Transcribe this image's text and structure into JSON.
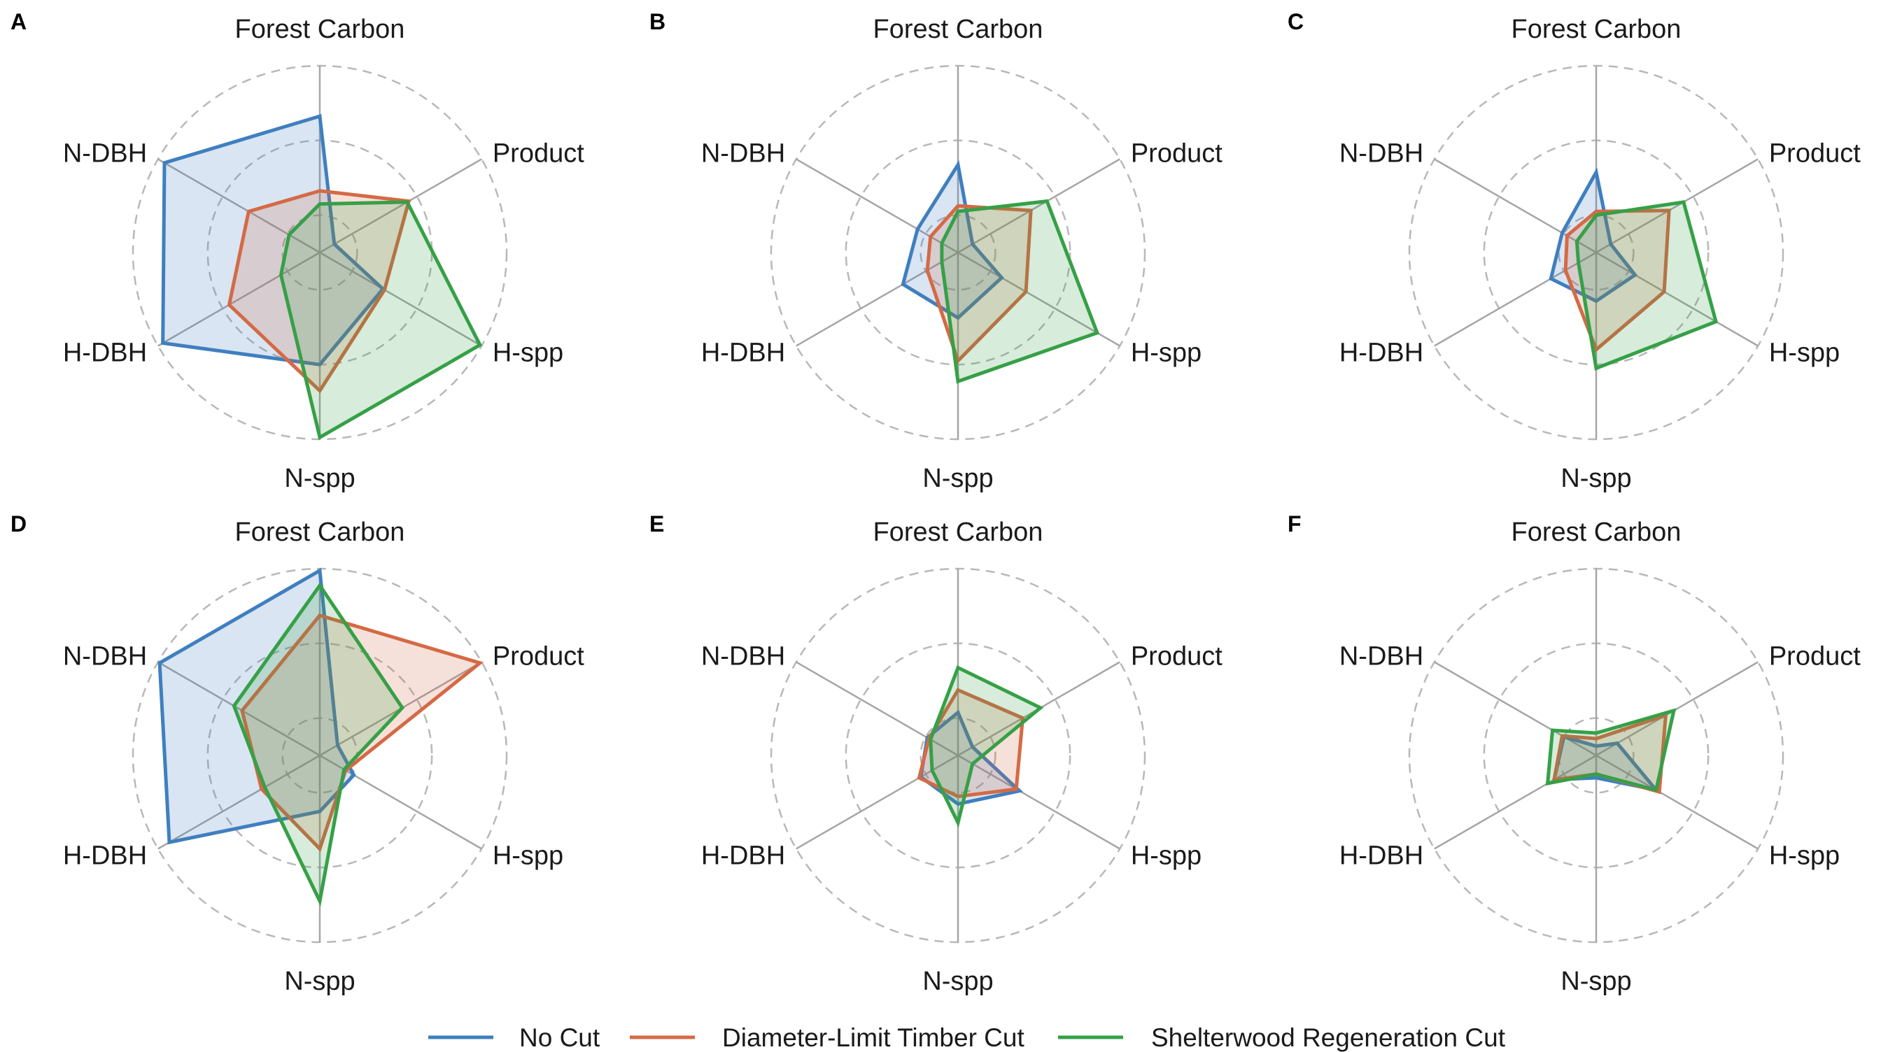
{
  "chart_data": {
    "type": "radar",
    "axes": [
      "Forest Carbon",
      "Product",
      "H-spp",
      "N-spp",
      "H-DBH",
      "N-DBH"
    ],
    "rlim": [
      0,
      1
    ],
    "grid": "dashed concentric circles",
    "legend_placement": "bottom-center",
    "series_style": [
      {
        "name": "No Cut",
        "color": "#3f7fbf"
      },
      {
        "name": "Diameter-Limit Timber Cut",
        "color": "#d46a45"
      },
      {
        "name": "Shelterwood Regeneration Cut",
        "color": "#36a047"
      }
    ],
    "panels": [
      {
        "label": "A",
        "series": [
          {
            "name": "No Cut",
            "values": [
              0.73,
              0.09,
              0.39,
              0.6,
              0.97,
              0.96
            ]
          },
          {
            "name": "Diameter-Limit Timber Cut",
            "values": [
              0.33,
              0.55,
              0.4,
              0.74,
              0.56,
              0.44
            ]
          },
          {
            "name": "Shelterwood Regeneration Cut",
            "values": [
              0.26,
              0.54,
              0.99,
              0.99,
              0.24,
              0.19
            ]
          }
        ]
      },
      {
        "label": "B",
        "series": [
          {
            "name": "No Cut",
            "values": [
              0.47,
              0.09,
              0.27,
              0.35,
              0.34,
              0.25
            ]
          },
          {
            "name": "Diameter-Limit Timber Cut",
            "values": [
              0.25,
              0.45,
              0.42,
              0.58,
              0.19,
              0.17
            ]
          },
          {
            "name": "Shelterwood Regeneration Cut",
            "values": [
              0.22,
              0.55,
              0.86,
              0.69,
              0.1,
              0.1
            ]
          }
        ]
      },
      {
        "label": "C",
        "series": [
          {
            "name": "No Cut",
            "values": [
              0.43,
              0.09,
              0.24,
              0.26,
              0.28,
              0.21
            ]
          },
          {
            "name": "Diameter-Limit Timber Cut",
            "values": [
              0.22,
              0.45,
              0.42,
              0.52,
              0.19,
              0.18
            ]
          },
          {
            "name": "Shelterwood Regeneration Cut",
            "values": [
              0.2,
              0.54,
              0.74,
              0.62,
              0.11,
              0.12
            ]
          }
        ]
      },
      {
        "label": "D",
        "series": [
          {
            "name": "No Cut",
            "values": [
              0.99,
              0.11,
              0.21,
              0.3,
              0.93,
              0.99
            ]
          },
          {
            "name": "Diameter-Limit Timber Cut",
            "values": [
              0.75,
              0.99,
              0.16,
              0.5,
              0.36,
              0.48
            ]
          },
          {
            "name": "Shelterwood Regeneration Cut",
            "values": [
              0.91,
              0.51,
              0.15,
              0.78,
              0.34,
              0.53
            ]
          }
        ]
      },
      {
        "label": "E",
        "series": [
          {
            "name": "No Cut",
            "values": [
              0.23,
              0.09,
              0.38,
              0.26,
              0.23,
              0.19
            ]
          },
          {
            "name": "Diameter-Limit Timber Cut",
            "values": [
              0.35,
              0.4,
              0.36,
              0.22,
              0.24,
              0.18
            ]
          },
          {
            "name": "Shelterwood Regeneration Cut",
            "values": [
              0.47,
              0.51,
              0.09,
              0.36,
              0.16,
              0.17
            ]
          }
        ]
      },
      {
        "label": "F",
        "series": [
          {
            "name": "No Cut",
            "values": [
              0.05,
              0.13,
              0.37,
              0.12,
              0.26,
              0.2
            ]
          },
          {
            "name": "Diameter-Limit Timber Cut",
            "values": [
              0.09,
              0.43,
              0.39,
              0.1,
              0.26,
              0.21
            ]
          },
          {
            "name": "Shelterwood Regeneration Cut",
            "values": [
              0.12,
              0.48,
              0.37,
              0.1,
              0.3,
              0.27
            ]
          }
        ]
      }
    ]
  },
  "legend": {
    "items": [
      "No Cut",
      "Diameter-Limit Timber Cut",
      "Shelterwood Regeneration Cut"
    ]
  }
}
